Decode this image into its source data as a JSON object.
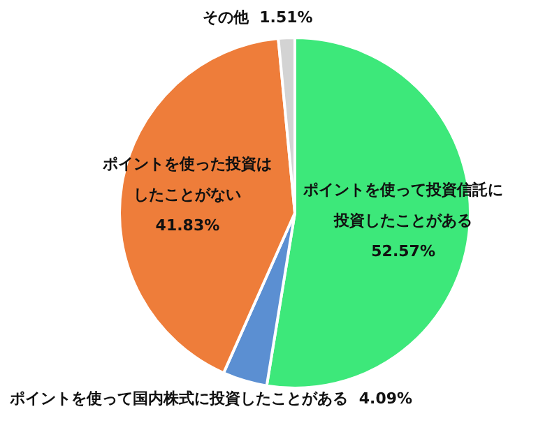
{
  "chart_data": {
    "type": "pie",
    "categories": [
      "ポイントを使って投資信託に投資したことがある",
      "ポイントを使って国内株式に投資したことがある",
      "ポイントを使った投資はしたことがない",
      "その他"
    ],
    "values": [
      52.57,
      4.09,
      41.83,
      1.51
    ],
    "value_labels": [
      "52.57%",
      "4.09%",
      "41.83%",
      "1.51%"
    ],
    "colors": [
      "#3de87a",
      "#5b8fd2",
      "#ee7d3a",
      "#d3d3d3"
    ],
    "legend": false
  }
}
